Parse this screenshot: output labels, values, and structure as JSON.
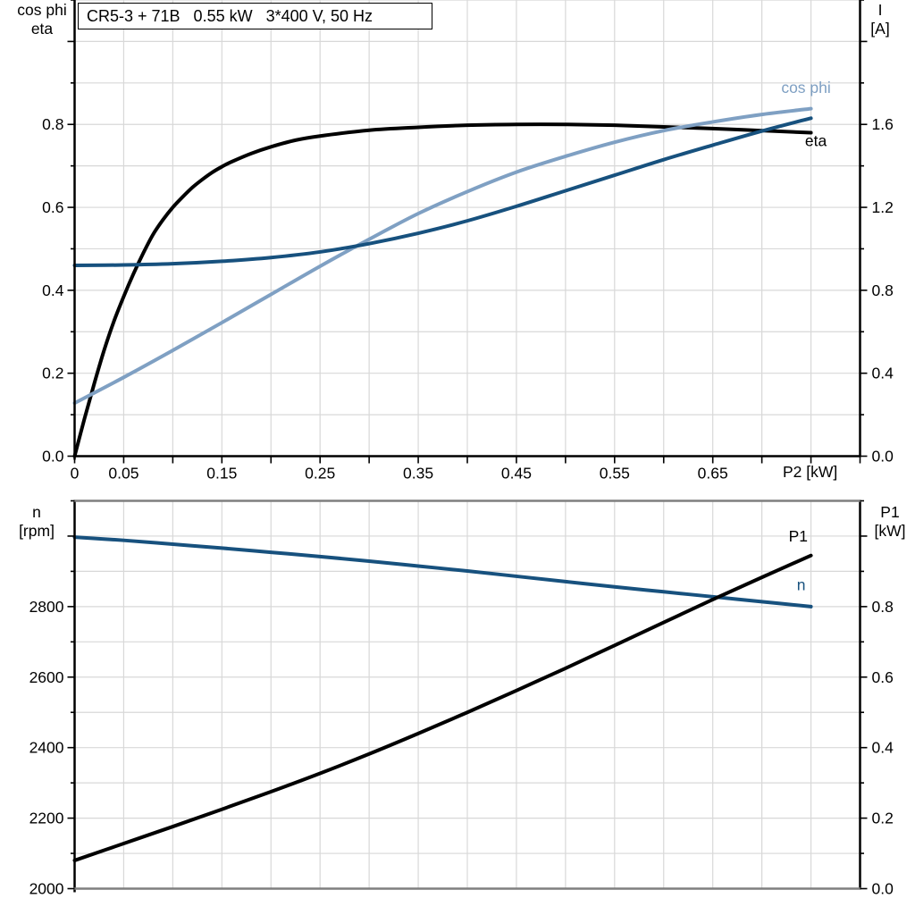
{
  "colors": {
    "black": "#000000",
    "dark_blue": "#17517E",
    "light_blue": "#7FA0C3",
    "grid": "#D8D8D8",
    "frame": "#7F7F7F",
    "background": "#FFFFFF"
  },
  "chart_data": [
    {
      "type": "line",
      "name": "motor-electrical-chart",
      "title": "CR5-3 + 71B   0.55 kW   3*400 V, 50 Hz",
      "x_axis": {
        "label": "P2 [kW]",
        "min": 0,
        "max": 0.8,
        "grid_step": 0.05,
        "label_values": [
          0,
          0.05,
          0.15,
          0.25,
          0.35,
          0.45,
          0.55,
          0.65
        ],
        "label_texts": [
          "0",
          "0.05",
          "0.15",
          "0.25",
          "0.35",
          "0.45",
          "0.55",
          "0.65"
        ]
      },
      "left_axis": {
        "title_lines": [
          "cos phi",
          "eta"
        ],
        "min": 0,
        "max": 1.1,
        "grid_step": 0.1,
        "label_values": [
          0,
          0.2,
          0.4,
          0.6,
          0.8
        ],
        "label_texts": [
          "0.0",
          "0.2",
          "0.4",
          "0.6",
          "0.8"
        ]
      },
      "right_axis": {
        "title_lines": [
          "I",
          "[A]"
        ],
        "min": 0,
        "max": 2.2,
        "grid_step": 0.2,
        "label_values": [
          0,
          0.4,
          0.8,
          1.2,
          1.6
        ],
        "label_texts": [
          "0.0",
          "0.4",
          "0.8",
          "1.2",
          "1.6"
        ]
      },
      "series": [
        {
          "id": "eta",
          "label": "eta",
          "axis": "left",
          "color": "black",
          "label_at": {
            "x": 0.755,
            "y": 0.748
          },
          "x": [
            0,
            0.01,
            0.02,
            0.03,
            0.04,
            0.05,
            0.06,
            0.07,
            0.08,
            0.09,
            0.1,
            0.11,
            0.12,
            0.13,
            0.14,
            0.15,
            0.16,
            0.18,
            0.2,
            0.225,
            0.25,
            0.3,
            0.35,
            0.4,
            0.45,
            0.5,
            0.55,
            0.6,
            0.65,
            0.7,
            0.75
          ],
          "y": [
            0,
            0.09,
            0.175,
            0.255,
            0.325,
            0.385,
            0.44,
            0.49,
            0.535,
            0.57,
            0.6,
            0.625,
            0.648,
            0.667,
            0.684,
            0.698,
            0.71,
            0.73,
            0.746,
            0.762,
            0.772,
            0.786,
            0.793,
            0.798,
            0.8,
            0.8,
            0.798,
            0.794,
            0.79,
            0.785,
            0.78
          ]
        },
        {
          "id": "cos-phi",
          "label": "cos phi",
          "axis": "left",
          "color": "light_blue",
          "label_at": {
            "x": 0.745,
            "y": 0.876
          },
          "x": [
            0,
            0.05,
            0.1,
            0.15,
            0.2,
            0.25,
            0.3,
            0.35,
            0.4,
            0.45,
            0.5,
            0.55,
            0.6,
            0.65,
            0.7,
            0.75
          ],
          "y": [
            0.128,
            0.19,
            0.255,
            0.322,
            0.39,
            0.458,
            0.523,
            0.585,
            0.638,
            0.685,
            0.723,
            0.757,
            0.785,
            0.806,
            0.824,
            0.838
          ]
        },
        {
          "id": "current",
          "label": "",
          "axis": "right",
          "color": "dark_blue",
          "x": [
            0,
            0.05,
            0.1,
            0.15,
            0.2,
            0.25,
            0.3,
            0.35,
            0.4,
            0.45,
            0.5,
            0.55,
            0.6,
            0.65,
            0.7,
            0.75
          ],
          "y": [
            0.92,
            0.922,
            0.928,
            0.94,
            0.958,
            0.985,
            1.025,
            1.075,
            1.135,
            1.205,
            1.28,
            1.355,
            1.43,
            1.5,
            1.568,
            1.63
          ]
        }
      ]
    },
    {
      "type": "line",
      "name": "motor-speed-power-chart",
      "x_axis": {
        "min": 0,
        "max": 0.8,
        "grid_step": 0.05
      },
      "left_axis": {
        "title_lines": [
          "n",
          "[rpm]"
        ],
        "min": 2000,
        "max": 3100,
        "grid_step": 100,
        "label_values": [
          2000,
          2200,
          2400,
          2600,
          2800
        ],
        "label_texts": [
          "2000",
          "2200",
          "2400",
          "2600",
          "2800"
        ]
      },
      "right_axis": {
        "title_lines": [
          "P1",
          "[kW]"
        ],
        "min": 0,
        "max": 1.1,
        "grid_step": 0.1,
        "label_values": [
          0,
          0.2,
          0.4,
          0.6,
          0.8
        ],
        "label_texts": [
          "0.0",
          "0.2",
          "0.4",
          "0.6",
          "0.8"
        ]
      },
      "series": [
        {
          "id": "speed",
          "label": "n",
          "axis": "left",
          "color": "dark_blue",
          "label_at": {
            "x": 0.74,
            "y": 2847
          },
          "x": [
            0,
            0.05,
            0.1,
            0.15,
            0.2,
            0.25,
            0.3,
            0.35,
            0.4,
            0.45,
            0.5,
            0.55,
            0.6,
            0.65,
            0.7,
            0.75
          ],
          "y": [
            2997,
            2988,
            2977,
            2966,
            2954,
            2942,
            2929,
            2915,
            2901,
            2886,
            2871,
            2856,
            2842,
            2828,
            2814,
            2800
          ]
        },
        {
          "id": "p1",
          "label": "P1",
          "axis": "right",
          "color": "black",
          "label_at": {
            "x": 0.737,
            "y": 0.985
          },
          "x": [
            0,
            0.05,
            0.1,
            0.15,
            0.2,
            0.25,
            0.3,
            0.35,
            0.4,
            0.45,
            0.5,
            0.55,
            0.6,
            0.65,
            0.7,
            0.75
          ],
          "y": [
            0.08,
            0.128,
            0.176,
            0.225,
            0.275,
            0.327,
            0.382,
            0.44,
            0.5,
            0.562,
            0.625,
            0.69,
            0.755,
            0.82,
            0.883,
            0.945
          ]
        }
      ]
    }
  ]
}
